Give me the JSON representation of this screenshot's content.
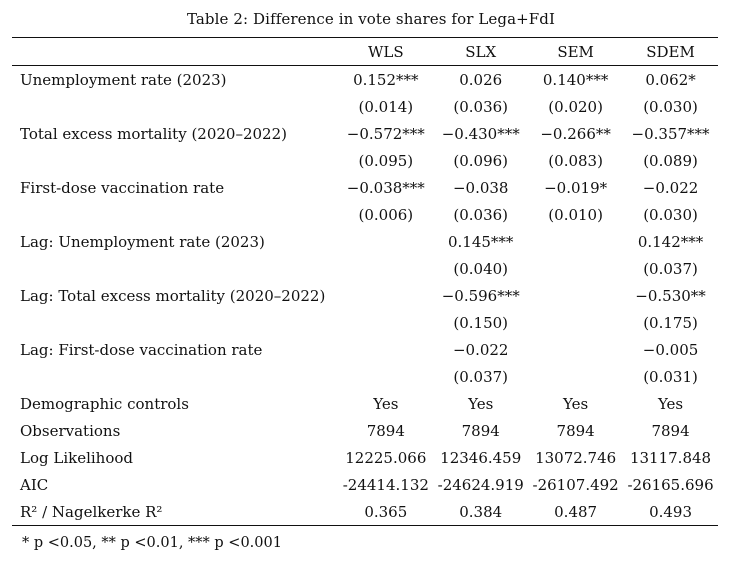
{
  "caption": "Table 2:  Difference in vote shares for Lega+FdI",
  "columns": [
    "WLS",
    "SLX",
    "SEM",
    "SDEM"
  ],
  "rows": [
    {
      "label": "Unemployment rate (2023)",
      "values": [
        "0.152***",
        "0.026",
        "0.140***",
        "0.062*"
      ]
    },
    {
      "label": "",
      "values": [
        "(0.014)",
        "(0.036)",
        "(0.020)",
        "(0.030)"
      ]
    },
    {
      "label": "Total excess mortality (2020–2022)",
      "values": [
        "−0.572***",
        "−0.430***",
        "−0.266**",
        "−0.357***"
      ]
    },
    {
      "label": "",
      "values": [
        "(0.095)",
        "(0.096)",
        "(0.083)",
        "(0.089)"
      ]
    },
    {
      "label": "First-dose vaccination rate",
      "values": [
        "−0.038***",
        "−0.038",
        "−0.019*",
        "−0.022"
      ]
    },
    {
      "label": "",
      "values": [
        "(0.006)",
        "(0.036)",
        "(0.010)",
        "(0.030)"
      ]
    },
    {
      "label": "Lag:  Unemployment rate (2023)",
      "values": [
        "",
        "0.145***",
        "",
        "0.142***"
      ]
    },
    {
      "label": "",
      "values": [
        "",
        "(0.040)",
        "",
        "(0.037)"
      ]
    },
    {
      "label": "Lag:  Total excess mortality (2020–2022)",
      "values": [
        "",
        "−0.596***",
        "",
        "−0.530**"
      ]
    },
    {
      "label": "",
      "values": [
        "",
        "(0.150)",
        "",
        "(0.175)"
      ]
    },
    {
      "label": "Lag:  First-dose vaccination rate",
      "values": [
        "",
        "−0.022",
        "",
        "−0.005"
      ]
    },
    {
      "label": "",
      "values": [
        "",
        "(0.037)",
        "",
        "(0.031)"
      ]
    },
    {
      "label": "Demographic controls",
      "values": [
        "Yes",
        "Yes",
        "Yes",
        "Yes"
      ]
    },
    {
      "label": "Observations",
      "values": [
        "7894",
        "7894",
        "7894",
        "7894"
      ]
    },
    {
      "label": "Log Likelihood",
      "values": [
        "12225.066",
        "12346.459",
        "13072.746",
        "13117.848"
      ]
    },
    {
      "label": "AIC",
      "values": [
        "-24414.132",
        "-24624.919",
        "-26107.492",
        "-26165.696"
      ]
    },
    {
      "label": "R² / Nagelkerke R²",
      "values": [
        "0.365",
        "0.384",
        "0.487",
        "0.493"
      ]
    }
  ],
  "note": "* p <0.05, ** p <0.01, *** p <0.001"
}
